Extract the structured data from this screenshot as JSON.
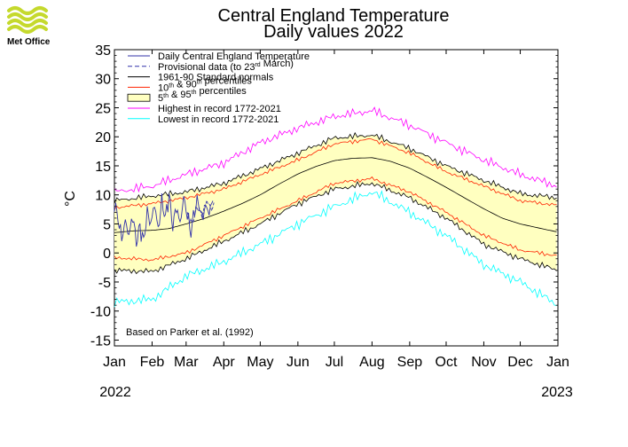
{
  "logo": {
    "text": "Met Office",
    "icon": "met-office-wave-icon",
    "color": "#c5d92d"
  },
  "chart_data": {
    "type": "line",
    "title": "Central England Temperature",
    "subtitle": "Daily values 2022",
    "ylabel": "°C",
    "xlabel": "",
    "ylim": [
      -16,
      35
    ],
    "yticks": [
      35,
      30,
      25,
      20,
      15,
      10,
      5,
      0,
      -5,
      -10,
      -15
    ],
    "xlim": [
      0,
      365
    ],
    "month_labels": [
      "Jan",
      "Feb",
      "Mar",
      "Apr",
      "May",
      "Jun",
      "Jul",
      "Aug",
      "Sep",
      "Oct",
      "Nov",
      "Dec",
      "Jan"
    ],
    "month_start_days": [
      0,
      31,
      59,
      90,
      120,
      151,
      181,
      212,
      243,
      273,
      304,
      334,
      365
    ],
    "year_left": "2022",
    "year_right": "2023",
    "annotation": "Based on Parker et al. (1992)",
    "legend_position": "top-left",
    "legend": [
      {
        "label": "Daily Central England Temperature",
        "color": "#3333aa",
        "style": "solid"
      },
      {
        "label": "Provisional data (to 23rd March)",
        "label_prefix": "Provisional data (to 23",
        "label_sup": "rd",
        "label_suffix": " March)",
        "color": "#3333aa",
        "style": "dashed"
      },
      {
        "label": "1961-90 Standard normals",
        "color": "#000000",
        "style": "solid"
      },
      {
        "label": "10th & 90th percentiles",
        "label_prefix": "10",
        "label_sup": "th",
        "label_mid": " & 90",
        "label_sup2": "th",
        "label_suffix": " percentiles",
        "color": "#ff2200",
        "style": "solid"
      },
      {
        "label": "5th & 95th percentiles",
        "label_prefix": "5",
        "label_sup": "th",
        "label_mid": " & 95",
        "label_sup2": "th",
        "label_suffix": " percentiles",
        "color": "#000000",
        "fill": "#ffffc0",
        "style": "box"
      },
      {
        "label": "Highest in record 1772-2021",
        "color": "#ff00ff",
        "style": "solid"
      },
      {
        "label": "Lowest in record 1772-2021",
        "color": "#00ffff",
        "style": "solid"
      }
    ],
    "series": {
      "normal": {
        "x": [
          0,
          15,
          31,
          45,
          59,
          75,
          90,
          105,
          120,
          135,
          151,
          166,
          181,
          196,
          212,
          227,
          243,
          258,
          273,
          288,
          304,
          319,
          334,
          349,
          365
        ],
        "values": [
          3.5,
          3.8,
          3.9,
          4.2,
          5.0,
          6.0,
          7.2,
          8.5,
          10.0,
          11.8,
          13.6,
          14.9,
          15.9,
          16.3,
          16.4,
          15.8,
          14.6,
          13.0,
          11.3,
          9.5,
          7.6,
          6.0,
          5.0,
          4.3,
          3.6
        ]
      },
      "p10": {
        "x": [
          0,
          31,
          59,
          90,
          120,
          151,
          181,
          212,
          243,
          273,
          304,
          334,
          365
        ],
        "values": [
          -0.8,
          -1.2,
          0.0,
          3.0,
          6.0,
          9.0,
          12.0,
          12.8,
          10.5,
          7.0,
          3.0,
          0.5,
          -0.5
        ]
      },
      "p90": {
        "x": [
          0,
          31,
          59,
          90,
          120,
          151,
          181,
          212,
          243,
          273,
          304,
          334,
          365
        ],
        "values": [
          7.8,
          8.5,
          9.5,
          11.0,
          13.5,
          16.0,
          18.8,
          19.6,
          17.2,
          14.0,
          11.5,
          9.0,
          8.2
        ]
      },
      "p5": {
        "x": [
          0,
          31,
          59,
          90,
          120,
          151,
          181,
          212,
          243,
          273,
          304,
          334,
          365
        ],
        "values": [
          -3.0,
          -3.2,
          -1.0,
          2.0,
          5.0,
          8.5,
          11.0,
          12.0,
          9.5,
          6.0,
          1.5,
          -1.0,
          -3.0
        ]
      },
      "p95": {
        "x": [
          0,
          31,
          59,
          90,
          120,
          151,
          181,
          212,
          243,
          273,
          304,
          334,
          365
        ],
        "values": [
          9.0,
          9.8,
          10.5,
          12.0,
          14.5,
          17.2,
          19.8,
          20.3,
          18.0,
          15.0,
          12.5,
          10.2,
          9.5
        ]
      },
      "highest": {
        "x": [
          0,
          31,
          59,
          90,
          120,
          151,
          181,
          212,
          243,
          273,
          304,
          334,
          365
        ],
        "values": [
          10.5,
          11.5,
          13.5,
          15.5,
          19.0,
          21.5,
          23.5,
          24.5,
          22.0,
          19.0,
          16.0,
          13.5,
          11.5
        ]
      },
      "lowest": {
        "x": [
          0,
          31,
          59,
          90,
          120,
          151,
          181,
          212,
          243,
          273,
          304,
          334,
          365
        ],
        "values": [
          -8.5,
          -8.0,
          -4.0,
          -1.5,
          1.5,
          5.0,
          8.0,
          10.5,
          7.0,
          3.0,
          -2.0,
          -5.0,
          -9.0
        ]
      },
      "daily_2022": {
        "x": [
          0,
          3,
          6,
          9,
          12,
          15,
          18,
          21,
          24,
          27,
          30,
          33,
          36,
          39,
          42,
          45,
          48,
          51,
          54,
          57,
          60,
          63,
          66,
          69,
          72,
          75,
          78,
          81
        ],
        "values": [
          8.5,
          6.0,
          2.5,
          5.5,
          3.0,
          6.5,
          1.8,
          4.5,
          2.0,
          7.0,
          5.0,
          8.5,
          4.0,
          9.0,
          6.0,
          10.0,
          4.5,
          8.0,
          5.0,
          9.5,
          6.5,
          3.5,
          7.5,
          9.0,
          6.0,
          8.0,
          7.0,
          9.0
        ]
      },
      "provisional": {
        "x": [
          60,
          64,
          68,
          72,
          76,
          80,
          82
        ],
        "values": [
          6.5,
          5.0,
          8.0,
          6.5,
          9.0,
          7.5,
          8.5
        ]
      }
    }
  }
}
